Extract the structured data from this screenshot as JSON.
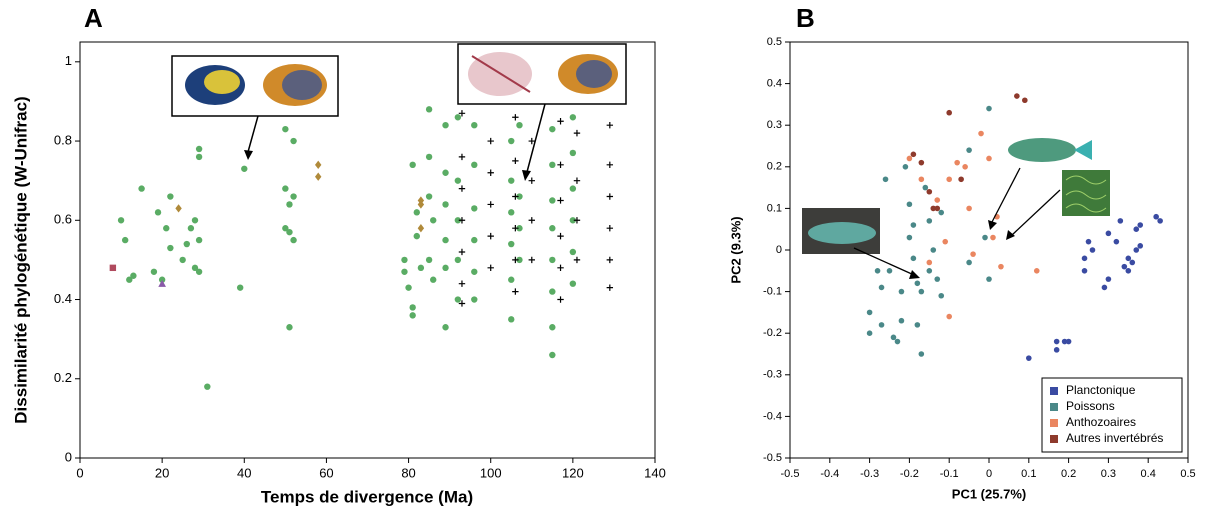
{
  "chart_data": [
    {
      "type": "scatter",
      "panel_label": "A",
      "x_label": "Temps de divergence (Ma)",
      "y_label": "Dissimilarité phylogénétique (W-Unifrac)",
      "xlim": [
        0,
        140
      ],
      "xticks": [
        0,
        20,
        40,
        60,
        80,
        100,
        120,
        140
      ],
      "ylim": [
        0,
        1.05
      ],
      "yticks": [
        0,
        0.2,
        0.4,
        0.6,
        0.8,
        1
      ],
      "series": [
        {
          "color": "#5aac64",
          "marker": "circle",
          "x": [
            10,
            11,
            12,
            13,
            15,
            18,
            19,
            20,
            21,
            22,
            22,
            25,
            26,
            27,
            28,
            28,
            29,
            29,
            29,
            29,
            31,
            39,
            40,
            50,
            50,
            50,
            51,
            51,
            51,
            52,
            52,
            52,
            79,
            79,
            80,
            81,
            81,
            81,
            82,
            82,
            83,
            85,
            85,
            85,
            85,
            86,
            86,
            89,
            89,
            89,
            89,
            89,
            89,
            92,
            92,
            92,
            92,
            92,
            96,
            96,
            96,
            96,
            96,
            96,
            105,
            105,
            105,
            105,
            105,
            105,
            107,
            107,
            107,
            107,
            115,
            115,
            115,
            115,
            115,
            115,
            115,
            115,
            120,
            120,
            120,
            120,
            120,
            120
          ],
          "y": [
            0.6,
            0.55,
            0.45,
            0.46,
            0.68,
            0.47,
            0.62,
            0.45,
            0.58,
            0.53,
            0.66,
            0.5,
            0.54,
            0.58,
            0.6,
            0.48,
            0.78,
            0.76,
            0.55,
            0.47,
            0.18,
            0.43,
            0.73,
            0.83,
            0.68,
            0.58,
            0.33,
            0.57,
            0.64,
            0.8,
            0.66,
            0.55,
            0.5,
            0.47,
            0.43,
            0.36,
            0.38,
            0.74,
            0.62,
            0.56,
            0.48,
            0.88,
            0.76,
            0.66,
            0.5,
            0.6,
            0.45,
            0.84,
            0.72,
            0.64,
            0.55,
            0.48,
            0.33,
            0.86,
            0.7,
            0.6,
            0.5,
            0.4,
            0.84,
            0.74,
            0.63,
            0.55,
            0.47,
            0.4,
            0.8,
            0.7,
            0.62,
            0.54,
            0.45,
            0.35,
            0.84,
            0.66,
            0.58,
            0.5,
            0.83,
            0.74,
            0.65,
            0.58,
            0.5,
            0.42,
            0.33,
            0.26,
            0.86,
            0.77,
            0.68,
            0.6,
            0.52,
            0.44
          ]
        },
        {
          "color": "#000000",
          "marker": "plus",
          "x": [
            93,
            93,
            93,
            93,
            93,
            93,
            93,
            100,
            100,
            100,
            100,
            100,
            106,
            106,
            106,
            106,
            106,
            106,
            110,
            110,
            110,
            110,
            117,
            117,
            117,
            117,
            117,
            117,
            121,
            121,
            121,
            121,
            129,
            129,
            129,
            129,
            129,
            129
          ],
          "y": [
            0.87,
            0.76,
            0.68,
            0.6,
            0.52,
            0.44,
            0.39,
            0.8,
            0.72,
            0.64,
            0.56,
            0.48,
            0.86,
            0.75,
            0.66,
            0.58,
            0.5,
            0.42,
            0.8,
            0.7,
            0.6,
            0.5,
            0.85,
            0.74,
            0.65,
            0.56,
            0.48,
            0.4,
            0.82,
            0.7,
            0.6,
            0.5,
            0.84,
            0.74,
            0.66,
            0.58,
            0.5,
            0.43
          ]
        },
        {
          "color": "#b04a5e",
          "marker": "square",
          "x": [
            8
          ],
          "y": [
            0.48
          ]
        },
        {
          "color": "#8a5aa8",
          "marker": "triangle",
          "x": [
            20
          ],
          "y": [
            0.44
          ]
        },
        {
          "color": "#b08a3a",
          "marker": "diamond",
          "x": [
            24,
            58,
            58,
            83,
            83,
            83
          ],
          "y": [
            0.63,
            0.74,
            0.71,
            0.65,
            0.64,
            0.58
          ]
        }
      ]
    },
    {
      "type": "scatter",
      "panel_label": "B",
      "x_label": "PC1 (25.7%)",
      "y_label": "PC2 (9.3%)",
      "xlim": [
        -0.5,
        0.5
      ],
      "xticks": [
        -0.5,
        -0.4,
        -0.3,
        -0.2,
        -0.1,
        0,
        0.1,
        0.2,
        0.3,
        0.4,
        0.5
      ],
      "ylim": [
        -0.5,
        0.5
      ],
      "yticks": [
        -0.5,
        -0.4,
        -0.3,
        -0.2,
        -0.1,
        0,
        0.1,
        0.2,
        0.3,
        0.4,
        0.5
      ],
      "legend": "lower right",
      "series": [
        {
          "name": "Planctonique",
          "color": "#3a4ba2",
          "marker": "circle",
          "x": [
            0.1,
            0.17,
            0.17,
            0.19,
            0.2,
            0.24,
            0.24,
            0.25,
            0.26,
            0.29,
            0.3,
            0.3,
            0.32,
            0.33,
            0.34,
            0.35,
            0.35,
            0.36,
            0.37,
            0.37,
            0.38,
            0.38,
            0.42,
            0.43
          ],
          "y": [
            -0.26,
            -0.24,
            -0.22,
            -0.22,
            -0.22,
            -0.05,
            -0.02,
            0.02,
            0.0,
            -0.09,
            -0.07,
            0.04,
            0.02,
            0.07,
            -0.04,
            -0.05,
            -0.02,
            -0.03,
            0.0,
            0.05,
            0.06,
            0.01,
            0.08,
            0.07
          ]
        },
        {
          "name": "Poissons",
          "color": "#4a8888",
          "marker": "circle",
          "x": [
            -0.3,
            -0.3,
            -0.28,
            -0.27,
            -0.27,
            -0.26,
            -0.25,
            -0.24,
            -0.23,
            -0.22,
            -0.22,
            -0.21,
            -0.2,
            -0.2,
            -0.19,
            -0.19,
            -0.18,
            -0.18,
            -0.17,
            -0.17,
            -0.16,
            -0.15,
            -0.15,
            -0.14,
            -0.13,
            -0.12,
            -0.12,
            -0.05,
            -0.05,
            -0.01,
            0,
            0
          ],
          "y": [
            -0.2,
            -0.15,
            -0.05,
            -0.09,
            -0.18,
            0.17,
            -0.05,
            -0.21,
            -0.22,
            -0.17,
            -0.1,
            0.2,
            0.11,
            0.03,
            0.06,
            -0.02,
            -0.08,
            -0.18,
            -0.1,
            -0.25,
            0.15,
            0.07,
            -0.05,
            0,
            -0.07,
            0.09,
            -0.11,
            0.24,
            -0.03,
            0.03,
            0.34,
            -0.07
          ]
        },
        {
          "name": "Anthozoaires",
          "color": "#ea8660",
          "marker": "circle",
          "x": [
            -0.2,
            -0.17,
            -0.15,
            -0.13,
            -0.11,
            -0.1,
            -0.08,
            -0.06,
            -0.05,
            -0.04,
            -0.02,
            0,
            0.01,
            0.02,
            0.03,
            0.12,
            -0.1
          ],
          "y": [
            0.22,
            0.17,
            -0.03,
            0.12,
            0.02,
            -0.16,
            0.21,
            0.2,
            0.1,
            -0.01,
            0.28,
            0.22,
            0.03,
            0.08,
            -0.04,
            -0.05,
            0.17
          ]
        },
        {
          "name": "Autres invertébrés",
          "color": "#8e3a2c",
          "marker": "circle",
          "x": [
            -0.19,
            -0.17,
            -0.15,
            -0.14,
            -0.13,
            -0.1,
            -0.07,
            0.07,
            0.09
          ],
          "y": [
            0.23,
            0.21,
            0.14,
            0.1,
            0.1,
            0.33,
            0.17,
            0.37,
            0.36
          ]
        }
      ]
    }
  ]
}
